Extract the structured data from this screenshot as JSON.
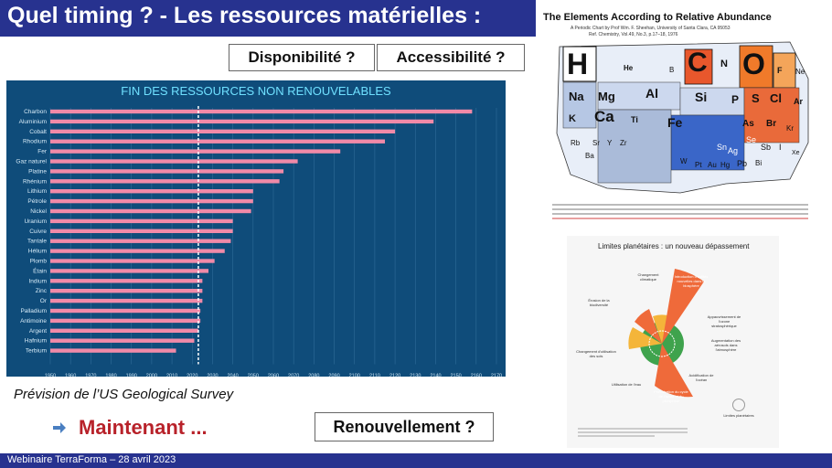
{
  "slide": {
    "title": "Quel timing ? - Les ressources matérielles :",
    "box_dispo": "Disponibilité ?",
    "box_acces": "Accessibilité ?",
    "caption": "Prévision de l’US Geological Survey",
    "maintenant": "Maintenant ...",
    "renouvellement": "Renouvellement ?",
    "footer": "Webinaire TerraForma – 28 avril 2023",
    "colors": {
      "title_bg": "#27328f",
      "accent_red": "#b8222a",
      "bar": "#f08aa8",
      "chart_bg": "#0f4c7a"
    }
  },
  "chart_data": {
    "type": "bar",
    "orientation": "horizontal",
    "title": "FIN DES RESSOURCES NON RENOUVELABLES",
    "categories": [
      "Charbon",
      "Aluminium",
      "Cobalt",
      "Rhodium",
      "Fer",
      "Gaz naturel",
      "Platine",
      "Rhénium",
      "Lithium",
      "Pétrole",
      "Nickel",
      "Uranium",
      "Cuivre",
      "Tantale",
      "Hélium",
      "Plomb",
      "Étain",
      "Indium",
      "Zinc",
      "Or",
      "Palladium",
      "Antimoine",
      "Argent",
      "Hafnium",
      "Terbium"
    ],
    "values": [
      2158,
      2139,
      2120,
      2115,
      2093,
      2072,
      2065,
      2063,
      2050,
      2050,
      2049,
      2040,
      2040,
      2039,
      2036,
      2031,
      2028,
      2025,
      2025,
      2025,
      2024,
      2024,
      2023,
      2021,
      2012
    ],
    "xlim": [
      1950,
      2170
    ],
    "xticks": [
      1950,
      1960,
      1970,
      1980,
      1990,
      2000,
      2010,
      2020,
      2030,
      2040,
      2050,
      2060,
      2070,
      2080,
      2090,
      2100,
      2110,
      2120,
      2130,
      2140,
      2150,
      2160,
      2170
    ],
    "reference_line": 2023,
    "grid": true
  },
  "images": {
    "periodic": {
      "title": "The Elements According to Relative Abundance",
      "credit": "A Periodic Chart by Prof Wm. F. Sheehan, University of Santa Clara, CA 95053",
      "ref": "Ref. Chemistry, Vol.49, No.3, p.17–18, 1976",
      "elements": [
        "H",
        "He",
        "B",
        "C",
        "N",
        "O",
        "F",
        "Ne",
        "Na",
        "Mg",
        "Al",
        "Si",
        "P",
        "S",
        "Cl",
        "Ar",
        "K",
        "Ca",
        "Ti",
        "Fe",
        "As",
        "Br",
        "Kr",
        "Rb",
        "Sr",
        "Y",
        "Zr",
        "Se",
        "Sn",
        "Sb",
        "I",
        "Xe",
        "Ba",
        "W",
        "Pt",
        "Au",
        "Hg",
        "Pb",
        "Bi",
        "Ag"
      ]
    },
    "limits": {
      "title": "Limites planétaires : un nouveau dépassement",
      "labels": [
        "Changement climatique",
        "Introduction d'entités nouvelles dans la biosphère",
        "Érosion de la biodiversité",
        "Appauvrissement de l'ozone stratosphérique",
        "Augmentation des aérosols dans l'atmosphère",
        "Changement d'utilisation des sols",
        "Acidification de l'océan",
        "Utilisation de l'eau",
        "Perturbation du cycle de l'azote et du phosphore",
        "Limites planétaires"
      ],
      "colors": {
        "over": "#ef6a3a",
        "warning": "#f4b53a",
        "safe": "#3fa34d"
      }
    }
  }
}
